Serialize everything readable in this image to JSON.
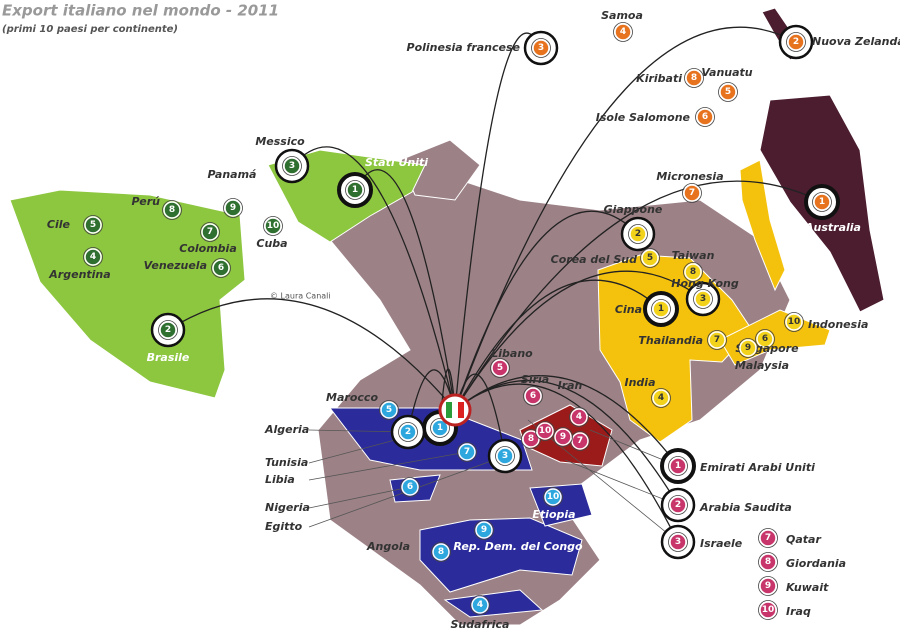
{
  "title": "Export italiano nel mondo - 2011",
  "subtitle": "(primi 10 paesi per continente)",
  "credit": "© Laura Canali",
  "groups": [
    {
      "color": "#2f6f2f",
      "text_color": "#ffffff",
      "countries": [
        {
          "label": "Stati Uniti",
          "rank": 1
        },
        {
          "label": "Brasile",
          "rank": 2
        },
        {
          "label": "Messico",
          "rank": 3
        },
        {
          "label": "Argentina",
          "rank": 4
        },
        {
          "label": "Cile",
          "rank": 5
        },
        {
          "label": "Venezuela",
          "rank": 6
        },
        {
          "label": "Colombia",
          "rank": 7
        },
        {
          "label": "Perú",
          "rank": 8
        },
        {
          "label": "Panamá",
          "rank": 9
        },
        {
          "label": "Cuba",
          "rank": 10
        }
      ]
    },
    {
      "color": "#f2d21b",
      "text_color": "#333333",
      "countries": [
        {
          "label": "Cina",
          "rank": 1
        },
        {
          "label": "Giappone",
          "rank": 2
        },
        {
          "label": "Hong Kong",
          "rank": 3
        },
        {
          "label": "India",
          "rank": 4
        },
        {
          "label": "Corea del Sud",
          "rank": 5
        },
        {
          "label": "Singapore",
          "rank": 6
        },
        {
          "label": "Thailandia",
          "rank": 7
        },
        {
          "label": "Taiwan",
          "rank": 8
        },
        {
          "label": "Malaysia",
          "rank": 9
        },
        {
          "label": "Indonesia",
          "rank": 10
        }
      ]
    },
    {
      "color": "#e8731e",
      "text_color": "#ffffff",
      "countries": [
        {
          "label": "Australia",
          "rank": 1
        },
        {
          "label": "Nuova Zelanda",
          "rank": 2
        },
        {
          "label": "Polinesia francese",
          "rank": 3
        },
        {
          "label": "Samoa",
          "rank": 4
        },
        {
          "label": "Vanuatu",
          "rank": 5
        },
        {
          "label": "Isole Salomone",
          "rank": 6
        },
        {
          "label": "Micronesia",
          "rank": 7
        },
        {
          "label": "Kiribati",
          "rank": 8
        }
      ]
    },
    {
      "color": "#c8356a",
      "text_color": "#ffffff",
      "countries": [
        {
          "label": "Emirati Arabi Uniti",
          "rank": 1
        },
        {
          "label": "Arabia Saudita",
          "rank": 2
        },
        {
          "label": "Israele",
          "rank": 3
        },
        {
          "label": "Iran",
          "rank": 4
        },
        {
          "label": "Libano",
          "rank": 5
        },
        {
          "label": "Siria",
          "rank": 6
        },
        {
          "label": "Qatar",
          "rank": 7
        },
        {
          "label": "Giordania",
          "rank": 8
        },
        {
          "label": "Kuwait",
          "rank": 9
        },
        {
          "label": "Iraq",
          "rank": 10
        }
      ]
    },
    {
      "color": "#2ea7df",
      "text_color": "#ffffff",
      "countries": [
        {
          "label": "Tunisia",
          "rank": 1
        },
        {
          "label": "Algeria",
          "rank": 2
        },
        {
          "label": "Egitto",
          "rank": 3
        },
        {
          "label": "Sudafrica",
          "rank": 4
        },
        {
          "label": "Marocco",
          "rank": 5
        },
        {
          "label": "Nigeria",
          "rank": 6
        },
        {
          "label": "Libia",
          "rank": 7
        },
        {
          "label": "Angola",
          "rank": 8
        },
        {
          "label": "Rep. Dem. del Congo",
          "rank": 9
        },
        {
          "label": "Etiopia",
          "rank": 10
        }
      ]
    }
  ]
}
